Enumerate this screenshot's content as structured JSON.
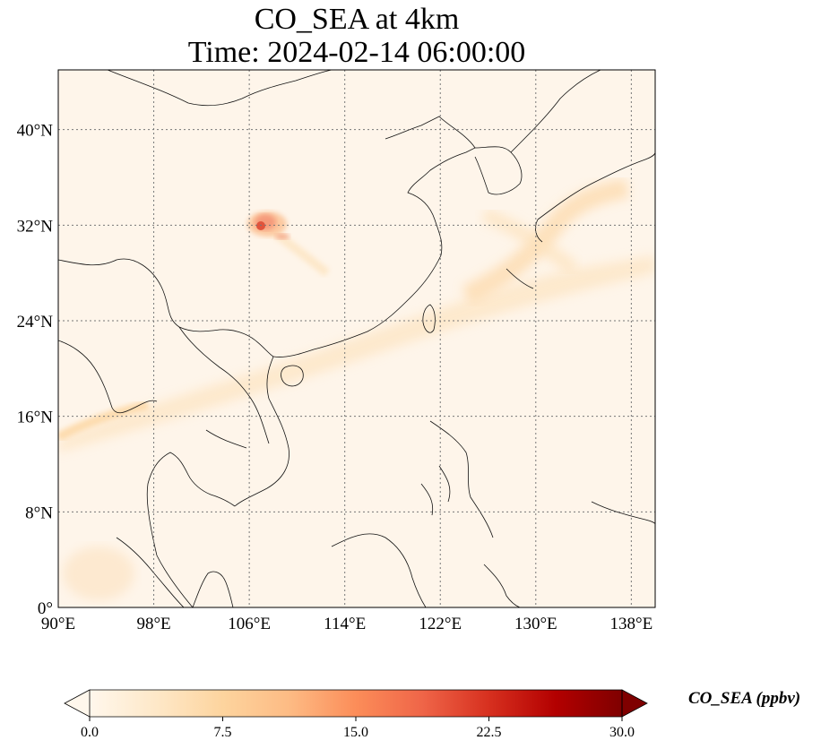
{
  "title": {
    "line1": "CO_SEA at 4km",
    "line2": "Time: 2024-02-14 06:00:00"
  },
  "map": {
    "lon_range": [
      90,
      140
    ],
    "lat_range": [
      0,
      45
    ],
    "lon_ticks": [
      {
        "value": 90,
        "label": "90°E"
      },
      {
        "value": 98,
        "label": "98°E"
      },
      {
        "value": 106,
        "label": "106°E"
      },
      {
        "value": 114,
        "label": "114°E"
      },
      {
        "value": 122,
        "label": "122°E"
      },
      {
        "value": 130,
        "label": "130°E"
      },
      {
        "value": 138,
        "label": "138°E"
      }
    ],
    "lat_ticks": [
      {
        "value": 0,
        "label": "0°"
      },
      {
        "value": 8,
        "label": "8°N"
      },
      {
        "value": 16,
        "label": "16°N"
      },
      {
        "value": 24,
        "label": "24°N"
      },
      {
        "value": 32,
        "label": "32°N"
      },
      {
        "value": 40,
        "label": "40°N"
      }
    ],
    "gridlines": "dotted",
    "hotspot": {
      "lon": 107.5,
      "lat": 31.7,
      "approx_value": 16
    }
  },
  "colorbar": {
    "label": "CO_SEA (ppbv)",
    "min": 0.0,
    "max": 30.0,
    "extend": "both",
    "ticks": [
      {
        "value": 0.0,
        "label": "0.0"
      },
      {
        "value": 7.5,
        "label": "7.5"
      },
      {
        "value": 15.0,
        "label": "15.0"
      },
      {
        "value": 22.5,
        "label": "22.5"
      },
      {
        "value": 30.0,
        "label": "30.0"
      }
    ],
    "colormap": "OrRd",
    "colors": [
      "#fff7ec",
      "#fee8c8",
      "#fdd49e",
      "#fdbb84",
      "#fc8d59",
      "#ef6548",
      "#d7301f",
      "#b30000",
      "#7f0000"
    ]
  }
}
